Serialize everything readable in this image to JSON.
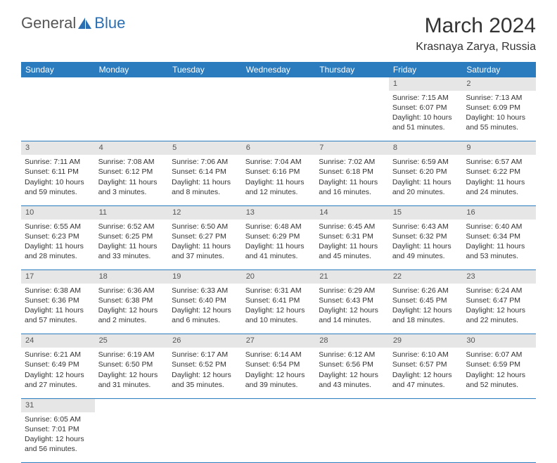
{
  "logo": {
    "text1": "General",
    "text2": "Blue"
  },
  "title": "March 2024",
  "location": "Krasnaya Zarya, Russia",
  "colors": {
    "header_bg": "#2b7bbf",
    "header_fg": "#ffffff",
    "daynum_bg": "#e6e6e6",
    "border": "#2b7bbf",
    "text": "#333333",
    "logo_gray": "#555555",
    "logo_blue": "#2b6fb3"
  },
  "weekdays": [
    "Sunday",
    "Monday",
    "Tuesday",
    "Wednesday",
    "Thursday",
    "Friday",
    "Saturday"
  ],
  "weeks": [
    {
      "nums": [
        "",
        "",
        "",
        "",
        "",
        "1",
        "2"
      ],
      "cells": [
        null,
        null,
        null,
        null,
        null,
        {
          "sunrise": "7:15 AM",
          "sunset": "6:07 PM",
          "dl1": "Daylight: 10 hours",
          "dl2": "and 51 minutes."
        },
        {
          "sunrise": "7:13 AM",
          "sunset": "6:09 PM",
          "dl1": "Daylight: 10 hours",
          "dl2": "and 55 minutes."
        }
      ]
    },
    {
      "nums": [
        "3",
        "4",
        "5",
        "6",
        "7",
        "8",
        "9"
      ],
      "cells": [
        {
          "sunrise": "7:11 AM",
          "sunset": "6:11 PM",
          "dl1": "Daylight: 10 hours",
          "dl2": "and 59 minutes."
        },
        {
          "sunrise": "7:08 AM",
          "sunset": "6:12 PM",
          "dl1": "Daylight: 11 hours",
          "dl2": "and 3 minutes."
        },
        {
          "sunrise": "7:06 AM",
          "sunset": "6:14 PM",
          "dl1": "Daylight: 11 hours",
          "dl2": "and 8 minutes."
        },
        {
          "sunrise": "7:04 AM",
          "sunset": "6:16 PM",
          "dl1": "Daylight: 11 hours",
          "dl2": "and 12 minutes."
        },
        {
          "sunrise": "7:02 AM",
          "sunset": "6:18 PM",
          "dl1": "Daylight: 11 hours",
          "dl2": "and 16 minutes."
        },
        {
          "sunrise": "6:59 AM",
          "sunset": "6:20 PM",
          "dl1": "Daylight: 11 hours",
          "dl2": "and 20 minutes."
        },
        {
          "sunrise": "6:57 AM",
          "sunset": "6:22 PM",
          "dl1": "Daylight: 11 hours",
          "dl2": "and 24 minutes."
        }
      ]
    },
    {
      "nums": [
        "10",
        "11",
        "12",
        "13",
        "14",
        "15",
        "16"
      ],
      "cells": [
        {
          "sunrise": "6:55 AM",
          "sunset": "6:23 PM",
          "dl1": "Daylight: 11 hours",
          "dl2": "and 28 minutes."
        },
        {
          "sunrise": "6:52 AM",
          "sunset": "6:25 PM",
          "dl1": "Daylight: 11 hours",
          "dl2": "and 33 minutes."
        },
        {
          "sunrise": "6:50 AM",
          "sunset": "6:27 PM",
          "dl1": "Daylight: 11 hours",
          "dl2": "and 37 minutes."
        },
        {
          "sunrise": "6:48 AM",
          "sunset": "6:29 PM",
          "dl1": "Daylight: 11 hours",
          "dl2": "and 41 minutes."
        },
        {
          "sunrise": "6:45 AM",
          "sunset": "6:31 PM",
          "dl1": "Daylight: 11 hours",
          "dl2": "and 45 minutes."
        },
        {
          "sunrise": "6:43 AM",
          "sunset": "6:32 PM",
          "dl1": "Daylight: 11 hours",
          "dl2": "and 49 minutes."
        },
        {
          "sunrise": "6:40 AM",
          "sunset": "6:34 PM",
          "dl1": "Daylight: 11 hours",
          "dl2": "and 53 minutes."
        }
      ]
    },
    {
      "nums": [
        "17",
        "18",
        "19",
        "20",
        "21",
        "22",
        "23"
      ],
      "cells": [
        {
          "sunrise": "6:38 AM",
          "sunset": "6:36 PM",
          "dl1": "Daylight: 11 hours",
          "dl2": "and 57 minutes."
        },
        {
          "sunrise": "6:36 AM",
          "sunset": "6:38 PM",
          "dl1": "Daylight: 12 hours",
          "dl2": "and 2 minutes."
        },
        {
          "sunrise": "6:33 AM",
          "sunset": "6:40 PM",
          "dl1": "Daylight: 12 hours",
          "dl2": "and 6 minutes."
        },
        {
          "sunrise": "6:31 AM",
          "sunset": "6:41 PM",
          "dl1": "Daylight: 12 hours",
          "dl2": "and 10 minutes."
        },
        {
          "sunrise": "6:29 AM",
          "sunset": "6:43 PM",
          "dl1": "Daylight: 12 hours",
          "dl2": "and 14 minutes."
        },
        {
          "sunrise": "6:26 AM",
          "sunset": "6:45 PM",
          "dl1": "Daylight: 12 hours",
          "dl2": "and 18 minutes."
        },
        {
          "sunrise": "6:24 AM",
          "sunset": "6:47 PM",
          "dl1": "Daylight: 12 hours",
          "dl2": "and 22 minutes."
        }
      ]
    },
    {
      "nums": [
        "24",
        "25",
        "26",
        "27",
        "28",
        "29",
        "30"
      ],
      "cells": [
        {
          "sunrise": "6:21 AM",
          "sunset": "6:49 PM",
          "dl1": "Daylight: 12 hours",
          "dl2": "and 27 minutes."
        },
        {
          "sunrise": "6:19 AM",
          "sunset": "6:50 PM",
          "dl1": "Daylight: 12 hours",
          "dl2": "and 31 minutes."
        },
        {
          "sunrise": "6:17 AM",
          "sunset": "6:52 PM",
          "dl1": "Daylight: 12 hours",
          "dl2": "and 35 minutes."
        },
        {
          "sunrise": "6:14 AM",
          "sunset": "6:54 PM",
          "dl1": "Daylight: 12 hours",
          "dl2": "and 39 minutes."
        },
        {
          "sunrise": "6:12 AM",
          "sunset": "6:56 PM",
          "dl1": "Daylight: 12 hours",
          "dl2": "and 43 minutes."
        },
        {
          "sunrise": "6:10 AM",
          "sunset": "6:57 PM",
          "dl1": "Daylight: 12 hours",
          "dl2": "and 47 minutes."
        },
        {
          "sunrise": "6:07 AM",
          "sunset": "6:59 PM",
          "dl1": "Daylight: 12 hours",
          "dl2": "and 52 minutes."
        }
      ]
    },
    {
      "nums": [
        "31",
        "",
        "",
        "",
        "",
        "",
        ""
      ],
      "cells": [
        {
          "sunrise": "6:05 AM",
          "sunset": "7:01 PM",
          "dl1": "Daylight: 12 hours",
          "dl2": "and 56 minutes."
        },
        null,
        null,
        null,
        null,
        null,
        null
      ]
    }
  ]
}
